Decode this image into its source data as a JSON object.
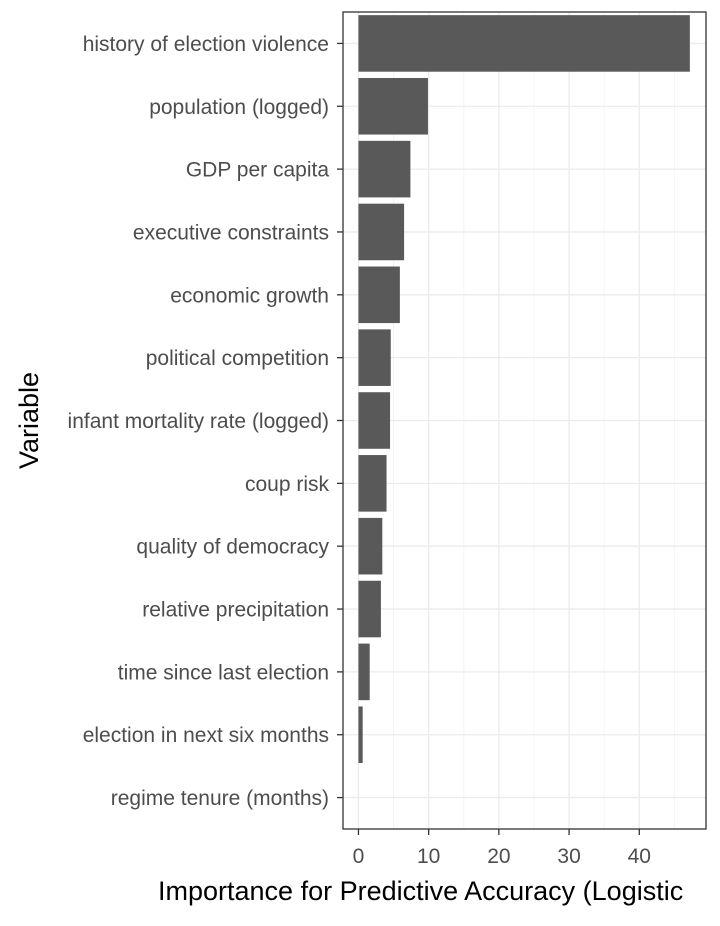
{
  "chart_data": {
    "type": "bar",
    "orientation": "horizontal",
    "title": "",
    "xlabel": "Importance for Predictive Accuracy (Logistic",
    "ylabel": "Variable",
    "categories": [
      "history of election violence",
      "population (logged)",
      "GDP per capita",
      "executive constraints",
      "economic growth",
      "political competition",
      "infant mortality rate (logged)",
      "coup risk",
      "quality of democracy",
      "relative precipitation",
      "time since last election",
      "election in next six months",
      "regime tenure (months)"
    ],
    "values": [
      47.2,
      9.9,
      7.4,
      6.5,
      5.9,
      4.6,
      4.5,
      4.0,
      3.4,
      3.2,
      1.6,
      0.6,
      0.0
    ],
    "xticks": [
      0,
      10,
      20,
      30,
      40
    ],
    "xtick_labels": [
      "0",
      "10",
      "20",
      "30",
      "40"
    ],
    "xlim": [
      -2.2,
      49.5
    ],
    "grid": true,
    "legend": "none",
    "colors": {
      "bar": "#595959",
      "grid_major": "#ebebeb",
      "grid_minor": "#f4f4f4",
      "panel_border": "#333333",
      "tick_text": "#4d4d4d",
      "axis_title": "#000000"
    }
  }
}
